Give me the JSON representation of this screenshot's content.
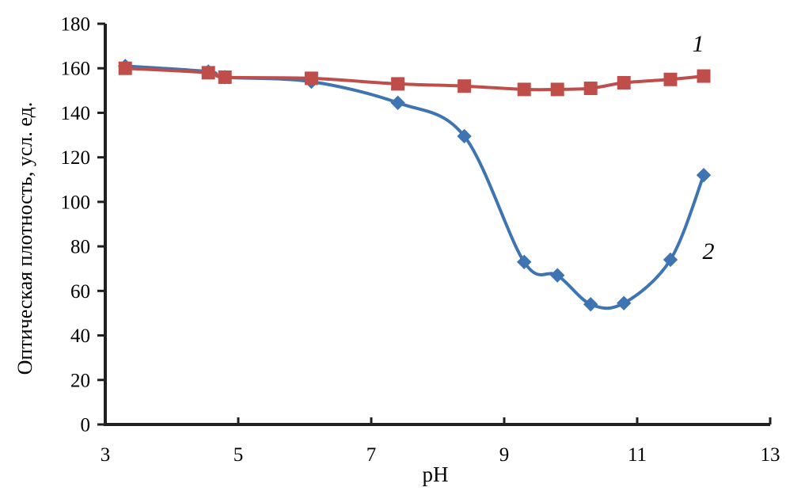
{
  "chart_data": {
    "type": "line",
    "title": "",
    "xlabel": "pH",
    "ylabel": "Оптическая плотность, усл. ед.",
    "xlim": [
      3,
      13
    ],
    "ylim": [
      0,
      180
    ],
    "x_ticks": [
      3,
      5,
      7,
      9,
      11,
      13
    ],
    "y_ticks": [
      0,
      20,
      40,
      60,
      80,
      100,
      120,
      140,
      160,
      180
    ],
    "grid": false,
    "legend_position": "inline-numeric-labels-right",
    "axis_color": "#221f1f",
    "text_color": "#000000",
    "line_style": "smoothed",
    "x": [
      3.3,
      4.55,
      4.8,
      6.1,
      7.4,
      8.4,
      9.3,
      9.8,
      10.3,
      10.8,
      11.5,
      12.0
    ],
    "series": [
      {
        "name": "1",
        "marker": "square",
        "color": "#bf4e4b",
        "values": [
          160,
          158,
          156,
          155.5,
          153,
          152,
          150.5,
          150.5,
          151,
          153.5,
          155,
          156.5
        ]
      },
      {
        "name": "2",
        "marker": "diamond",
        "color": "#3f74b2",
        "values": [
          161,
          158.5,
          156,
          154,
          144.5,
          129.5,
          73,
          67,
          54,
          54.5,
          74,
          112
        ]
      }
    ]
  }
}
